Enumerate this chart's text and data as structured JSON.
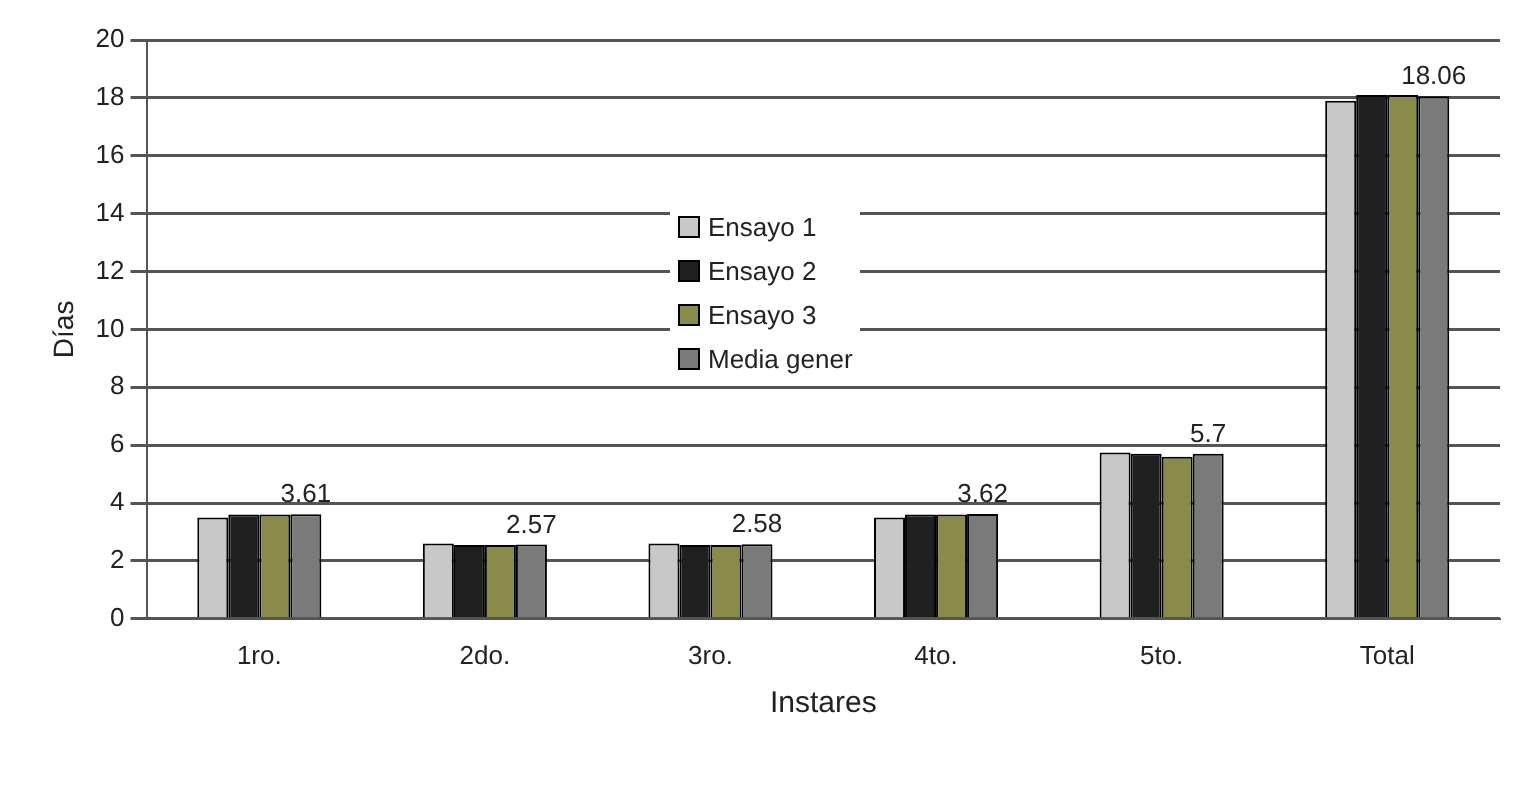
{
  "chart_data": {
    "type": "bar",
    "xlabel": "Instares",
    "ylabel": "Días",
    "categories": [
      "1ro.",
      "2do.",
      "3ro.",
      "4to.",
      "5to.",
      "Total"
    ],
    "series": [
      {
        "name": "Ensayo 1",
        "color": "#c8c8c8",
        "values": [
          3.5,
          2.6,
          2.6,
          3.5,
          5.75,
          17.9
        ]
      },
      {
        "name": "Ensayo 2",
        "color": "#202020",
        "values": [
          3.6,
          2.55,
          2.55,
          3.6,
          5.7,
          18.1
        ]
      },
      {
        "name": "Ensayo 3",
        "color": "#8a8a4a",
        "values": [
          3.6,
          2.55,
          2.55,
          3.6,
          5.6,
          18.1
        ]
      },
      {
        "name": "Media gener",
        "color": "#7a7a7a",
        "values": [
          3.61,
          2.57,
          2.58,
          3.62,
          5.7,
          18.06
        ],
        "value_labels": [
          "3.61",
          "2.57",
          "2.58",
          "3.62",
          "5.7",
          "18.06"
        ]
      }
    ],
    "ylim": [
      0,
      20
    ],
    "yticks": [
      0,
      2,
      4,
      6,
      8,
      10,
      12,
      14,
      16,
      18,
      20
    ],
    "grid": "y",
    "legend": "center"
  }
}
